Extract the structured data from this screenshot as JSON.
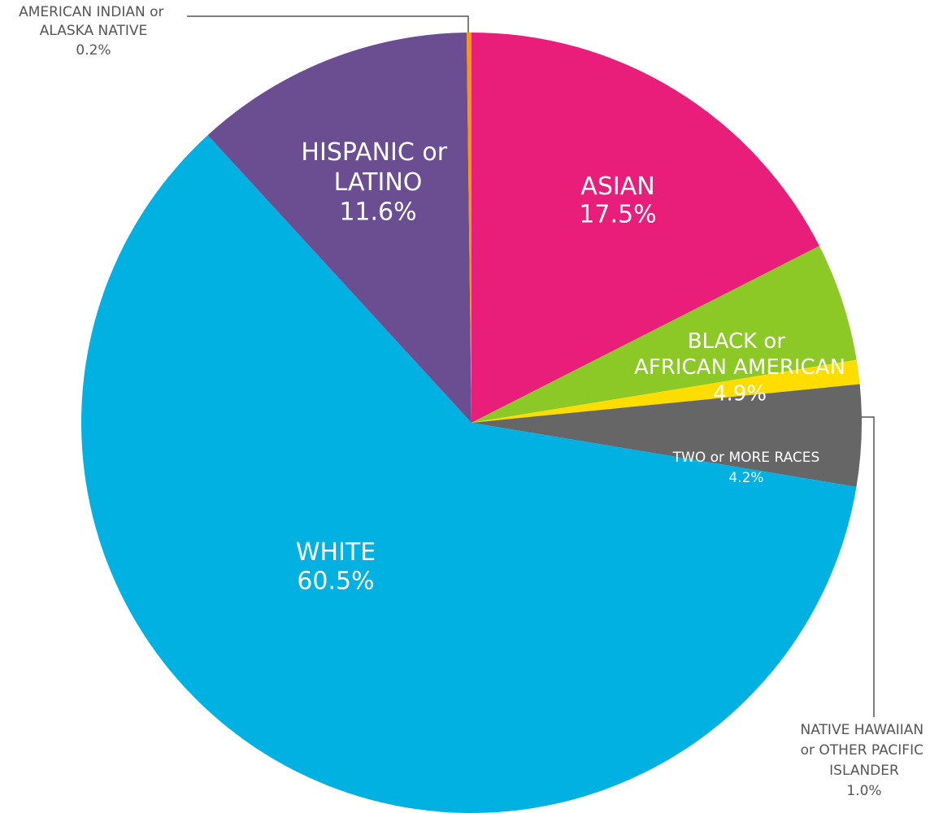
{
  "chart_data": {
    "type": "pie",
    "categories": [
      "ASIAN",
      "BLACK or AFRICAN AMERICAN",
      "NATIVE HAWAIIAN or OTHER PACIFIC ISLANDER",
      "TWO or MORE RACES",
      "WHITE",
      "HISPANIC or LATINO",
      "AMERICAN INDIAN or ALASKA NATIVE"
    ],
    "values": [
      17.5,
      4.9,
      1.0,
      4.2,
      60.5,
      11.6,
      0.2
    ],
    "value_labels": [
      "17.5%",
      "4.9%",
      "1.0%",
      "4.2%",
      "60.5%",
      "11.6%",
      "0.2%"
    ],
    "colors": [
      "#e91e7a",
      "#8cc927",
      "#ffdd00",
      "#666666",
      "#00b1e1",
      "#6a4e91",
      "#f7941d"
    ]
  }
}
